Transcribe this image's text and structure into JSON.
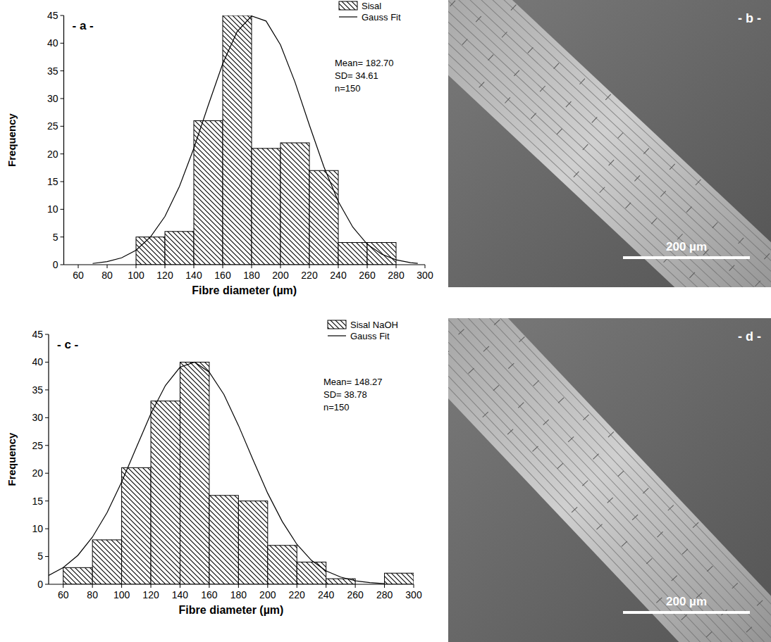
{
  "chart_data": [
    {
      "type": "histogram",
      "panel_label": "- a -",
      "x_label": "Fibre diameter (µm)",
      "y_label": "Frequency",
      "xlim": [
        50,
        300
      ],
      "xticks": [
        60,
        80,
        100,
        120,
        140,
        160,
        180,
        200,
        220,
        240,
        260,
        280,
        300
      ],
      "ylim": [
        0,
        45
      ],
      "yticks": [
        0,
        5,
        10,
        15,
        20,
        25,
        30,
        35,
        40,
        45
      ],
      "legend": "upper right",
      "color": "#000000",
      "annotations": [
        "Mean= 182.70",
        "SD= 34.61",
        "n=150"
      ],
      "series": [
        {
          "name": "Sisal",
          "type": "histogram",
          "bins": [
            100,
            120,
            140,
            160,
            180,
            200,
            220,
            240,
            260,
            280
          ],
          "values": [
            5,
            6,
            26,
            45,
            21,
            22,
            17,
            4,
            4
          ]
        },
        {
          "name": "Gauss Fit",
          "type": "line",
          "x": [
            70,
            80,
            90,
            100,
            110,
            120,
            130,
            140,
            150,
            160,
            170,
            180,
            190,
            200,
            210,
            220,
            230,
            240,
            250,
            260,
            270,
            280,
            290,
            295
          ],
          "values": [
            0.22,
            0.55,
            1.24,
            2.6,
            5.0,
            8.7,
            14.1,
            21.0,
            28.8,
            36.3,
            42.1,
            44.9,
            44.0,
            39.7,
            33.0,
            25.2,
            17.7,
            11.4,
            6.8,
            3.7,
            1.9,
            0.87,
            0.37,
            0.23
          ]
        }
      ]
    },
    {
      "type": "histogram",
      "panel_label": "- c -",
      "x_label": "Fibre diameter (µm)",
      "y_label": "Frequency",
      "xlim": [
        50,
        300
      ],
      "xticks": [
        60,
        80,
        100,
        120,
        140,
        160,
        180,
        200,
        220,
        240,
        260,
        280,
        300
      ],
      "ylim": [
        0,
        45
      ],
      "yticks": [
        0,
        5,
        10,
        15,
        20,
        25,
        30,
        35,
        40,
        45
      ],
      "legend": "upper right",
      "color": "#000000",
      "annotations": [
        "Mean= 148.27",
        "SD= 38.78",
        "n=150"
      ],
      "series": [
        {
          "name": "Sisal NaOH",
          "type": "histogram",
          "bins": [
            60,
            80,
            100,
            120,
            140,
            160,
            180,
            200,
            220,
            240,
            260,
            280,
            300
          ],
          "values": [
            3,
            8,
            21,
            33,
            40,
            16,
            15,
            7,
            4,
            1,
            0,
            2
          ]
        },
        {
          "name": "Gauss Fit",
          "type": "line",
          "x": [
            50,
            60,
            70,
            80,
            90,
            100,
            110,
            120,
            130,
            140,
            150,
            160,
            170,
            180,
            190,
            200,
            210,
            220,
            230,
            240,
            250,
            260,
            270,
            280
          ],
          "values": [
            1.6,
            3.0,
            5.2,
            8.5,
            12.9,
            18.4,
            24.6,
            30.7,
            35.8,
            39.1,
            40.0,
            38.2,
            34.2,
            28.6,
            22.4,
            16.4,
            11.3,
            7.2,
            4.3,
            2.4,
            1.3,
            0.63,
            0.29,
            0.12
          ]
        }
      ]
    }
  ],
  "images": [
    {
      "label": "- b -",
      "scale_bar": "200 µm"
    },
    {
      "label": "- d -",
      "scale_bar": "200 µm"
    }
  ]
}
